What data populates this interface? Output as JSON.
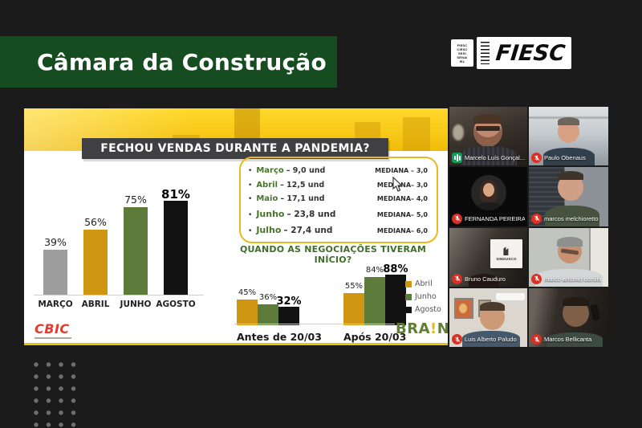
{
  "banner": {
    "title": "Câmara da Construção"
  },
  "logo": {
    "brand": "FIESC",
    "sub_lines": [
      "FIESC",
      "CIESC",
      "SESI",
      "SENAI",
      "IEL"
    ]
  },
  "slide": {
    "title": "FECHOU VENDAS DURANTE A PANDEMIA?",
    "subtitle": "QUANDO AS NEGOCIAÇÕES TIVERAM INÍCIO?",
    "cbic": "CBIC",
    "brain": {
      "part1": "BRA",
      "bang": "!",
      "part2": "N"
    },
    "bullets": [
      {
        "dot": "•",
        "month": "Março",
        "amount": "– 9,0 und",
        "mediana": "MEDIANA – 3,0"
      },
      {
        "dot": "•",
        "month": "Abril",
        "amount": "– 12,5 und",
        "mediana": "MEDIANA– 3,0"
      },
      {
        "dot": "•",
        "month": "Maio",
        "amount": "– 17,1 und",
        "mediana": "MEDIANA– 4,0"
      },
      {
        "dot": "•",
        "month": "Junho",
        "amount": "– 23,8 und",
        "mediana": "MEDIANA– 5,0"
      },
      {
        "dot": "•",
        "month": "Julho",
        "amount": "– 27,4 und",
        "mediana": "MEDIANA– 6,0"
      }
    ]
  },
  "chart_data": [
    {
      "type": "bar",
      "title": "FECHOU VENDAS DURANTE A PANDEMIA?",
      "categories": [
        "MARÇO",
        "ABRIL",
        "JUNHO",
        "AGOSTO"
      ],
      "values": [
        39,
        56,
        75,
        81
      ],
      "labels": [
        "39%",
        "56%",
        "75%",
        "81%"
      ],
      "colors": [
        "#9e9e9e",
        "#cf9612",
        "#5d7c3b",
        "#121212"
      ],
      "xlabel": "",
      "ylabel": "",
      "ylim": [
        0,
        100
      ],
      "grid": false
    },
    {
      "type": "bar",
      "title": "QUANDO AS NEGOCIAÇÕES TIVERAM INÍCIO?",
      "categories": [
        "Antes de 20/03",
        "Após 20/03"
      ],
      "series": [
        {
          "name": "Abril",
          "color": "#cf9612",
          "values": [
            45,
            55
          ],
          "labels": [
            "45%",
            "55%"
          ]
        },
        {
          "name": "Junho",
          "color": "#5d7c3b",
          "values": [
            36,
            84
          ],
          "labels": [
            "36%",
            "84%"
          ]
        },
        {
          "name": "Agosto",
          "color": "#121212",
          "values": [
            32,
            88
          ],
          "labels": [
            "32%",
            "88%"
          ]
        }
      ],
      "ylim": [
        0,
        100
      ],
      "grid": false,
      "legend_position": "right"
    }
  ],
  "participants": [
    {
      "name": "Marcelo Luís Gonçal...",
      "audio": "speaking"
    },
    {
      "name": "Paulo Obenaus",
      "audio": "muted"
    },
    {
      "name": "FERNANDA PEREIRA...",
      "audio": "muted"
    },
    {
      "name": "marcos melchioretto",
      "audio": "muted"
    },
    {
      "name": "Bruno Cauduro",
      "audio": "muted",
      "poster": "SINDUSCO"
    },
    {
      "name": "marco antonio corsini",
      "audio": "muted"
    },
    {
      "name": "Luis Alberto Paludo",
      "audio": "muted"
    },
    {
      "name": "Marcos Bellicanta",
      "audio": "muted"
    }
  ],
  "colors": {
    "page_bg": "#1b1b1b",
    "banner_green": "#154d20",
    "slide_yellow": "#f6c514",
    "accent_yellow": "#e9b81f",
    "title_bar_gray": "#403f41",
    "green_text": "#47742b",
    "cbic_red": "#e23b30",
    "mic_muted_red": "#d93025",
    "audio_speaking_green": "#0f9d58"
  }
}
